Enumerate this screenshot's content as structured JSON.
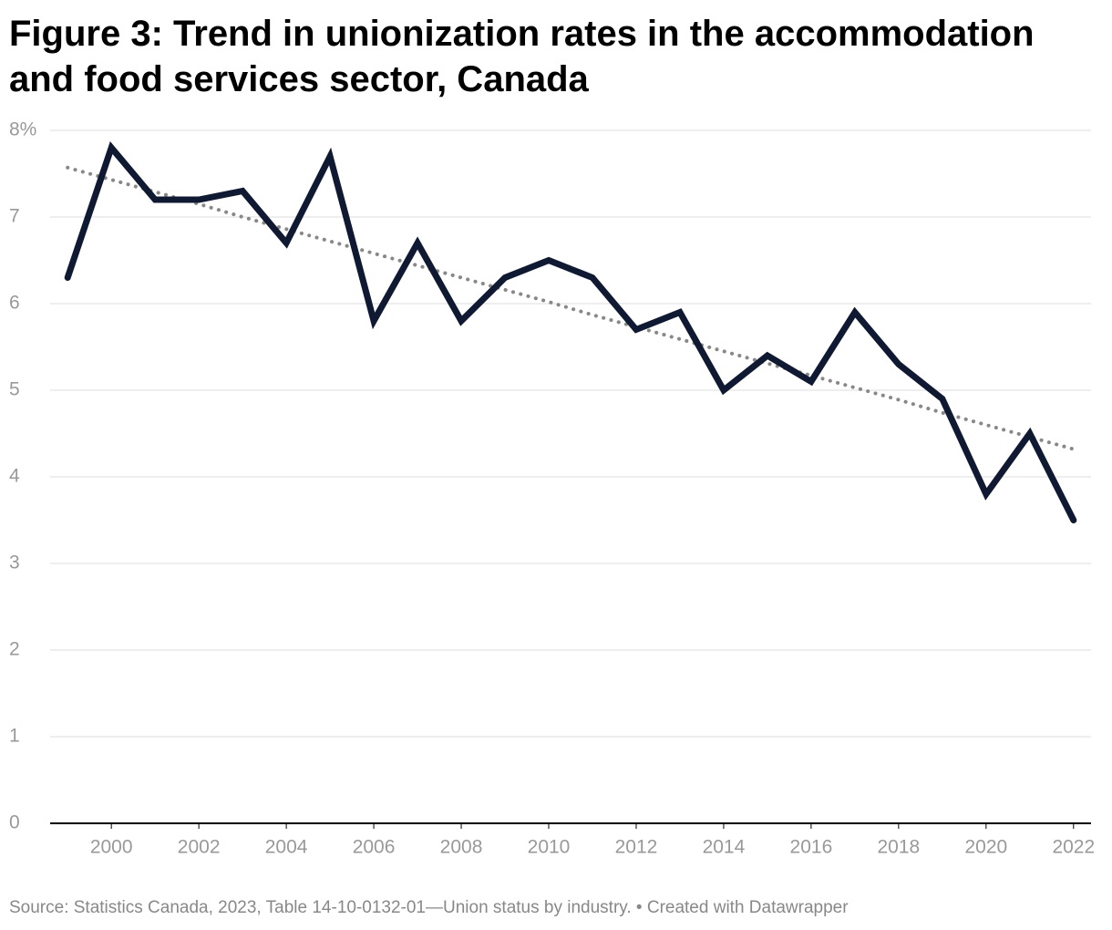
{
  "chart_data": {
    "type": "line",
    "title": "Figure 3: Trend in unionization rates in the accommodation and food services sector, Canada",
    "source": "Source: Statistics Canada, 2023, Table 14-10-0132-01—Union status by industry. • Created with Datawrapper",
    "x": [
      1999,
      2000,
      2001,
      2002,
      2003,
      2004,
      2005,
      2006,
      2007,
      2008,
      2009,
      2010,
      2011,
      2012,
      2013,
      2014,
      2015,
      2016,
      2017,
      2018,
      2019,
      2020,
      2021,
      2022
    ],
    "series": [
      {
        "color": "#0f1932",
        "style": "solid",
        "values": [
          6.3,
          7.8,
          7.2,
          7.2,
          7.3,
          6.7,
          7.7,
          5.8,
          6.7,
          5.8,
          6.3,
          6.5,
          6.3,
          5.7,
          5.9,
          5.0,
          5.4,
          5.1,
          5.9,
          5.3,
          4.9,
          3.8,
          4.5,
          3.5
        ]
      },
      {
        "color": "#888888",
        "style": "dotted",
        "values": [
          7.57,
          7.43,
          7.29,
          7.15,
          7.0,
          6.86,
          6.72,
          6.58,
          6.44,
          6.3,
          6.16,
          6.02,
          5.87,
          5.73,
          5.59,
          5.45,
          5.31,
          5.17,
          5.03,
          4.89,
          4.74,
          4.6,
          4.46,
          4.32
        ]
      }
    ],
    "xlim": [
      1998.6,
      2022.4
    ],
    "xticks": [
      2000,
      2002,
      2004,
      2006,
      2008,
      2010,
      2012,
      2014,
      2016,
      2018,
      2020,
      2022
    ],
    "ylim": [
      0,
      8
    ],
    "yticks": [
      0,
      1,
      2,
      3,
      4,
      5,
      6,
      7,
      {
        "value": 8,
        "label": "8%"
      }
    ],
    "grid": true
  }
}
